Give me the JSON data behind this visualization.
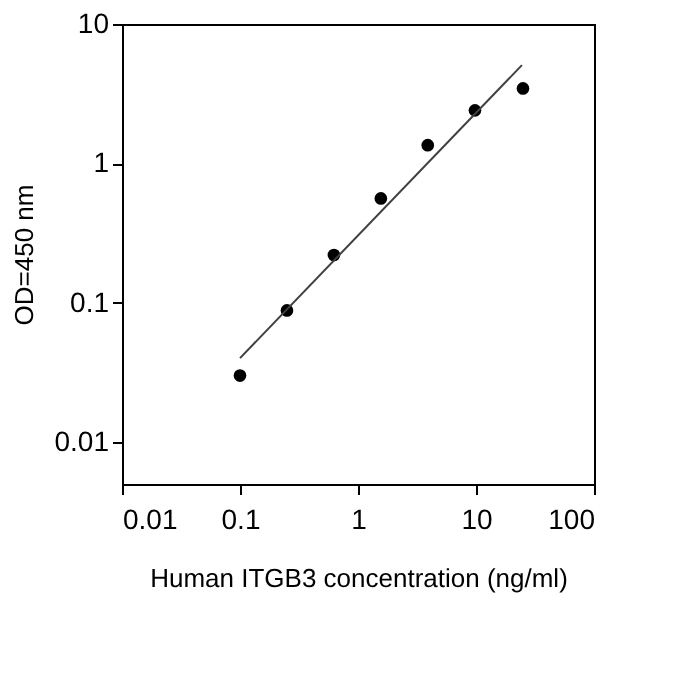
{
  "chart_data": {
    "type": "scatter",
    "xlabel": "Human ITGB3 concentration (ng/ml)",
    "ylabel": "OD=450 nm",
    "log": "xy",
    "xlim": [
      0.01,
      100
    ],
    "xticks": [
      0.01,
      0.1,
      1,
      10,
      100
    ],
    "ylim": [
      0.005,
      10
    ],
    "yticks": [
      0.01,
      0.1,
      1,
      10
    ],
    "grid": false,
    "series": [
      {
        "color": "#000000",
        "marker": "circle",
        "x": [
          0.1,
          0.25,
          0.625,
          1.5625,
          3.9,
          9.8,
          25
        ],
        "values": [
          0.03,
          0.088,
          0.22,
          0.56,
          1.35,
          2.4,
          3.45
        ]
      },
      {
        "type": "line",
        "color": "#404040",
        "line_style": "solid",
        "marker": "none",
        "x": [
          0.1,
          24.5
        ],
        "values": [
          0.04,
          5.07
        ]
      }
    ]
  }
}
